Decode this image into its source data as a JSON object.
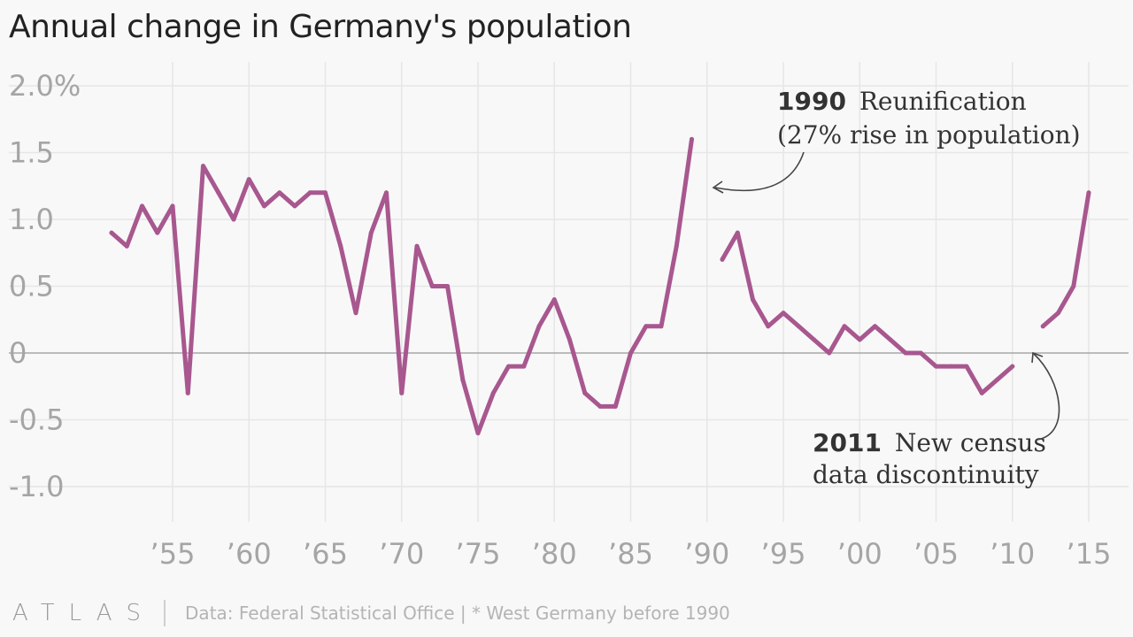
{
  "title": "Annual change in Germany's population",
  "footer": {
    "logo": "ATLAS",
    "source": "Data: Federal Statistical Office | * West Germany before 1990"
  },
  "colors": {
    "line": "#a8578f",
    "grid": "#e6e6e6",
    "zero": "#999999",
    "text": "#a5a5a5"
  },
  "chart_data": {
    "type": "line",
    "title": "Annual change in Germany's population",
    "xlabel": "",
    "ylabel": "",
    "xlim": [
      1950,
      2016
    ],
    "ylim": [
      -1.0,
      2.0
    ],
    "grid": true,
    "y_ticks": [
      {
        "value": 2.0,
        "label": "2.0%"
      },
      {
        "value": 1.5,
        "label": "1.5"
      },
      {
        "value": 1.0,
        "label": "1.0"
      },
      {
        "value": 0.5,
        "label": "0.5"
      },
      {
        "value": 0,
        "label": "0"
      },
      {
        "value": -0.5,
        "label": "-0.5"
      },
      {
        "value": -1.0,
        "label": "-1.0"
      }
    ],
    "x_ticks": [
      {
        "value": 1955,
        "label": "’55"
      },
      {
        "value": 1960,
        "label": "’60"
      },
      {
        "value": 1965,
        "label": "’65"
      },
      {
        "value": 1970,
        "label": "’70"
      },
      {
        "value": 1975,
        "label": "’75"
      },
      {
        "value": 1980,
        "label": "’80"
      },
      {
        "value": 1985,
        "label": "’85"
      },
      {
        "value": 1990,
        "label": "’90"
      },
      {
        "value": 1995,
        "label": "’95"
      },
      {
        "value": 2000,
        "label": "’00"
      },
      {
        "value": 2005,
        "label": "’05"
      },
      {
        "value": 2010,
        "label": "’10"
      },
      {
        "value": 2015,
        "label": "’15"
      }
    ],
    "segments": [
      {
        "x": [
          1951,
          1952,
          1953,
          1954,
          1955,
          1956,
          1957,
          1958,
          1959,
          1960,
          1961,
          1962,
          1963,
          1964,
          1965,
          1966,
          1967,
          1968,
          1969,
          1970,
          1971,
          1972,
          1973,
          1974,
          1975,
          1976,
          1977,
          1978,
          1979,
          1980,
          1981,
          1982,
          1983,
          1984,
          1985,
          1986,
          1987,
          1988,
          1989
        ],
        "y": [
          0.9,
          0.8,
          1.1,
          0.9,
          1.1,
          -0.3,
          1.4,
          1.2,
          1.0,
          1.3,
          1.1,
          1.2,
          1.1,
          1.2,
          1.2,
          0.8,
          0.3,
          0.9,
          1.2,
          -0.3,
          0.8,
          0.5,
          0.5,
          -0.2,
          -0.6,
          -0.3,
          -0.1,
          -0.1,
          0.2,
          0.4,
          0.1,
          -0.3,
          -0.4,
          -0.4,
          0.0,
          0.2,
          0.2,
          0.8,
          1.6
        ]
      },
      {
        "x": [
          1991,
          1992,
          1993,
          1994,
          1995,
          1996,
          1997,
          1998,
          1999,
          2000,
          2001,
          2002,
          2003,
          2004,
          2005,
          2006,
          2007,
          2008,
          2009,
          2010
        ],
        "y": [
          0.7,
          0.9,
          0.4,
          0.2,
          0.3,
          0.2,
          0.1,
          0.0,
          0.2,
          0.1,
          0.2,
          0.1,
          0.0,
          0.0,
          -0.1,
          -0.1,
          -0.1,
          -0.3,
          -0.2,
          -0.1
        ]
      },
      {
        "x": [
          2012,
          2013,
          2014,
          2015
        ],
        "y": [
          0.2,
          0.3,
          0.5,
          1.2
        ]
      }
    ],
    "annotations": [
      {
        "bold": "1990",
        "text": "Reunification",
        "line2": "(27% rise in population)"
      },
      {
        "bold": "2011",
        "text": "New census",
        "line2": "data discontinuity"
      }
    ]
  }
}
